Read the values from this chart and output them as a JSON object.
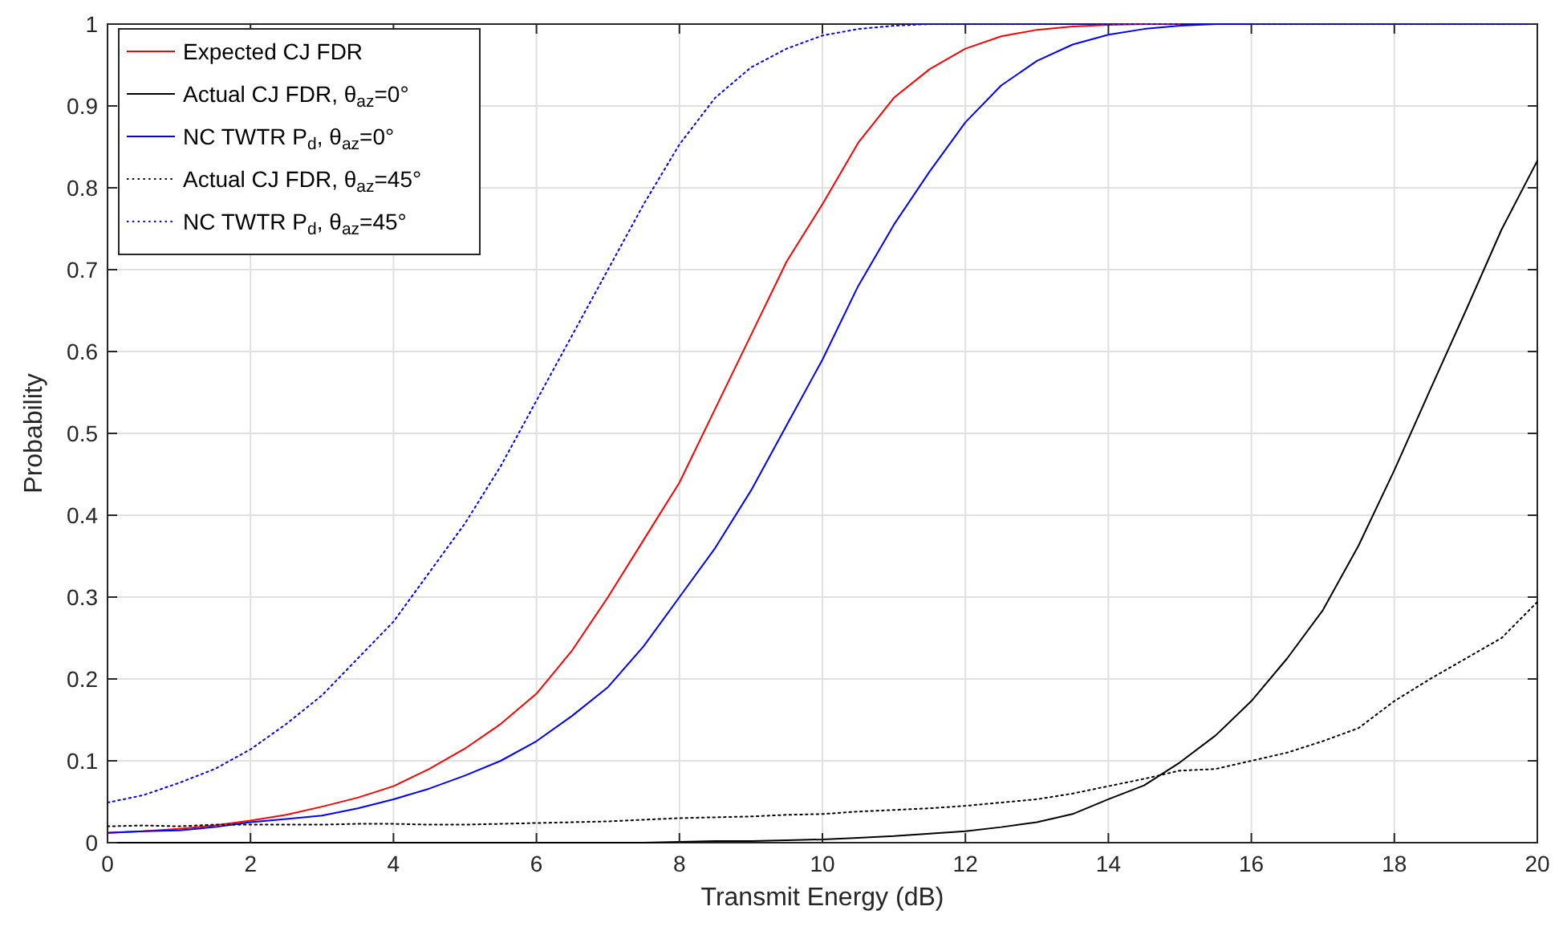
{
  "chart_data": {
    "type": "line",
    "xlabel": "Transmit Energy (dB)",
    "ylabel": "Probability",
    "x": [
      0,
      0.5,
      1,
      1.5,
      2,
      2.5,
      3,
      3.5,
      4,
      4.5,
      5,
      5.5,
      6,
      6.5,
      7,
      7.5,
      8,
      8.5,
      9,
      9.5,
      10,
      10.5,
      11,
      11.5,
      12,
      12.5,
      13,
      13.5,
      14,
      14.5,
      15,
      15.5,
      16,
      16.5,
      17,
      17.5,
      18,
      18.5,
      19,
      19.5,
      20
    ],
    "series": [
      {
        "name": "Expected CJ FDR",
        "color": "#ff0000",
        "line_style": "solid",
        "values": [
          0.012,
          0.014,
          0.017,
          0.021,
          0.027,
          0.034,
          0.044,
          0.055,
          0.069,
          0.09,
          0.115,
          0.145,
          0.182,
          0.235,
          0.3,
          0.37,
          0.44,
          0.53,
          0.62,
          0.71,
          0.78,
          0.855,
          0.91,
          0.945,
          0.97,
          0.985,
          0.993,
          0.997,
          0.999,
          1,
          1,
          null,
          null,
          null,
          null,
          null,
          null,
          null,
          null,
          null,
          null
        ]
      },
      {
        "name": "Actual CJ FDR, θ$_{az}$=0°",
        "color": "#000000",
        "line_style": "solid",
        "values": [
          0,
          0,
          0,
          0,
          0,
          0,
          0,
          0,
          0,
          0,
          0,
          0,
          0,
          0,
          0,
          0,
          0.001,
          0.002,
          0.002,
          0.003,
          0.004,
          0.006,
          0.008,
          0.011,
          0.014,
          0.019,
          0.025,
          0.035,
          0.053,
          0.07,
          0.098,
          0.131,
          0.173,
          0.225,
          0.284,
          0.363,
          0.455,
          0.553,
          0.65,
          0.749,
          0.833
        ]
      },
      {
        "name": "NC TWTR P$_{d}$, θ$_{az}$=0°",
        "color": "#0000ff",
        "line_style": "solid",
        "values": [
          0.012,
          0.014,
          0.015,
          0.019,
          0.025,
          0.029,
          0.033,
          0.042,
          0.053,
          0.066,
          0.082,
          0.1,
          0.124,
          0.155,
          0.19,
          0.24,
          0.3,
          0.36,
          0.43,
          0.51,
          0.59,
          0.68,
          0.755,
          0.82,
          0.88,
          0.925,
          0.955,
          0.975,
          0.987,
          0.994,
          0.998,
          1,
          1,
          null,
          null,
          null,
          null,
          null,
          null,
          null,
          null
        ]
      },
      {
        "name": "Actual CJ FDR, θ$_{az}$=45°",
        "color": "#000000",
        "line_style": "dotted",
        "values": [
          0.02,
          0.021,
          0.02,
          0.022,
          0.022,
          0.022,
          0.022,
          0.023,
          0.023,
          0.022,
          0.022,
          0.023,
          0.024,
          0.025,
          0.026,
          0.028,
          0.03,
          0.031,
          0.032,
          0.034,
          0.035,
          0.038,
          0.04,
          0.042,
          0.045,
          0.049,
          0.053,
          0.06,
          0.069,
          0.078,
          0.088,
          0.09,
          0.1,
          0.11,
          0.124,
          0.14,
          0.173,
          0.2,
          0.225,
          0.25,
          0.294
        ]
      },
      {
        "name": "NC TWTR P$_{d}$, θ$_{az}$=45°",
        "color": "#0000ff",
        "line_style": "dotted",
        "values": [
          0.049,
          0.058,
          0.073,
          0.09,
          0.114,
          0.145,
          0.18,
          0.225,
          0.27,
          0.33,
          0.39,
          0.46,
          0.54,
          0.62,
          0.7,
          0.78,
          0.853,
          0.91,
          0.947,
          0.97,
          0.986,
          0.994,
          0.998,
          1,
          1,
          1,
          1,
          1,
          1,
          1,
          1,
          1,
          1,
          1,
          1,
          1,
          1,
          1,
          1,
          1,
          1
        ]
      }
    ],
    "xlim": [
      0,
      20
    ],
    "xticks": [
      0,
      2,
      4,
      6,
      8,
      10,
      12,
      14,
      16,
      18,
      20
    ],
    "ylim": [
      0,
      1
    ],
    "yticks": [
      0,
      0.1,
      0.2,
      0.3,
      0.4,
      0.5,
      0.6,
      0.7,
      0.8,
      0.9,
      1
    ],
    "grid": true,
    "legend": "top left"
  }
}
